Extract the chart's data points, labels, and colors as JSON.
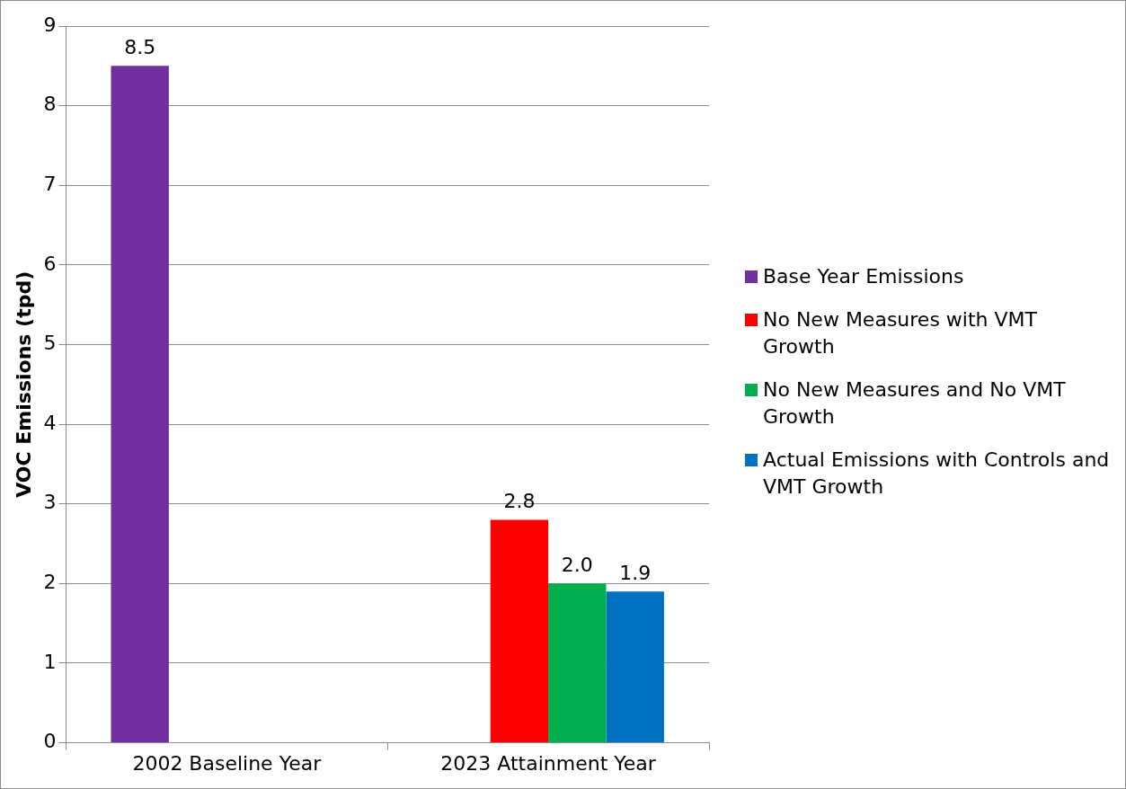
{
  "chart_data": {
    "type": "bar",
    "ylabel": "VOC Emissions (tpd)",
    "categories": [
      "2002 Baseline Year",
      "2023 Attainment Year"
    ],
    "series": [
      {
        "name": "Base Year Emissions",
        "color": "#7030a0",
        "values": [
          8.5,
          null
        ],
        "value_labels": [
          "8.5",
          null
        ]
      },
      {
        "name": "No New Measures with VMT Growth",
        "color": "#ff0000",
        "values": [
          null,
          2.8
        ],
        "value_labels": [
          null,
          "2.8"
        ]
      },
      {
        "name": "No New Measures and No VMT Growth",
        "color": "#00b050",
        "values": [
          null,
          2.0
        ],
        "value_labels": [
          null,
          "2.0"
        ]
      },
      {
        "name": "Actual Emissions with Controls and VMT Growth",
        "color": "#0070c0",
        "values": [
          null,
          1.9
        ],
        "value_labels": [
          null,
          "1.9"
        ]
      }
    ],
    "ylim": [
      0,
      9
    ],
    "yticks": [
      0,
      1,
      2,
      3,
      4,
      5,
      6,
      7,
      8,
      9
    ],
    "grid": "y",
    "legend": "right"
  }
}
